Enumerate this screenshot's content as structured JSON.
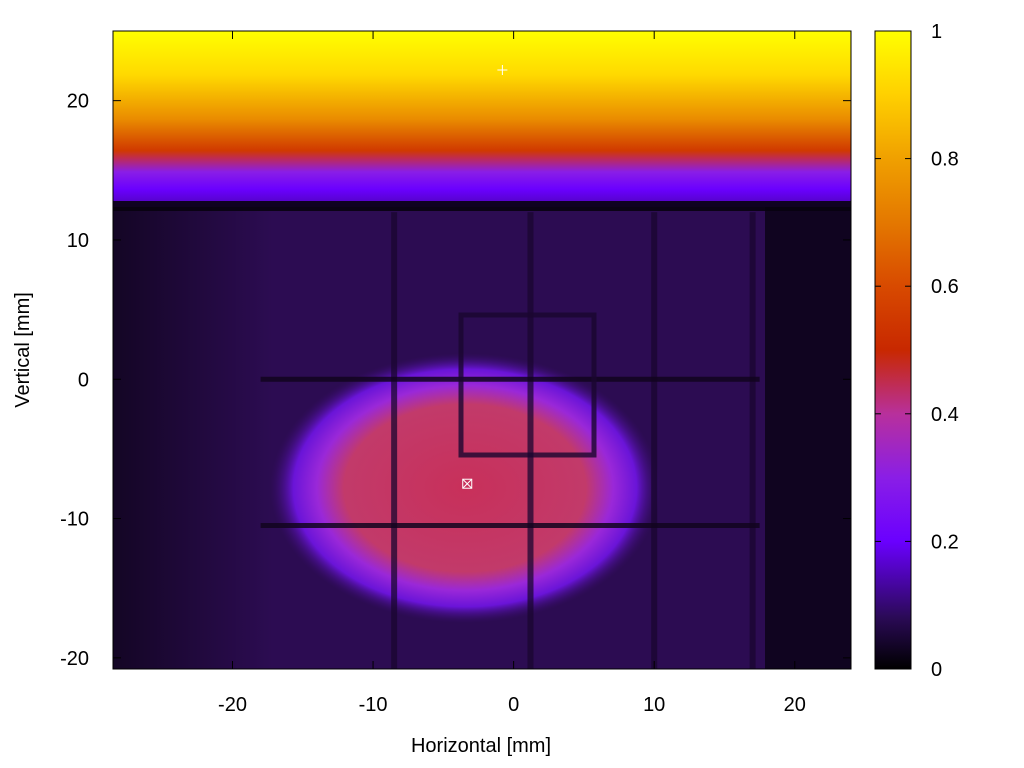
{
  "chart_data": {
    "type": "heatmap",
    "title": "",
    "xlabel": "Horizontal [mm]",
    "ylabel": "Vertical [mm]",
    "xlim": [
      -28.5,
      24
    ],
    "ylim": [
      -20.8,
      25
    ],
    "x_ticks": [
      -20,
      -10,
      0,
      10,
      20
    ],
    "y_ticks": [
      -20,
      -10,
      0,
      10,
      20
    ],
    "colorbar": {
      "range": [
        0,
        1
      ],
      "ticks": [
        0,
        0.2,
        0.4,
        0.6,
        0.8,
        1
      ],
      "tick_labels": [
        "0",
        "0.2",
        "0.4",
        "0.6",
        "0.8",
        "1"
      ],
      "palette": [
        {
          "v": 0.0,
          "color": "#000000"
        },
        {
          "v": 0.08,
          "color": "#2a0a55"
        },
        {
          "v": 0.2,
          "color": "#6a00ff"
        },
        {
          "v": 0.3,
          "color": "#8a1ee6"
        },
        {
          "v": 0.4,
          "color": "#b8309c"
        },
        {
          "v": 0.5,
          "color": "#c82800"
        },
        {
          "v": 0.6,
          "color": "#d84a00"
        },
        {
          "v": 0.7,
          "color": "#e47800"
        },
        {
          "v": 0.8,
          "color": "#f0a000"
        },
        {
          "v": 0.9,
          "color": "#ffd000"
        },
        {
          "v": 1.0,
          "color": "#ffff00"
        }
      ]
    },
    "regions": [
      {
        "name": "upper bright band",
        "y_range": [
          12.5,
          25
        ],
        "value_range": [
          0.15,
          1.0
        ]
      },
      {
        "name": "background field",
        "value": 0.12
      },
      {
        "name": "central blob",
        "center": [
          -3.5,
          -7
        ],
        "radius_x": 12,
        "radius_y": 8,
        "peak_value": 0.42
      }
    ],
    "grid_lines_mm": {
      "vertical": [
        -8.5,
        1.2,
        10,
        17
      ],
      "horizontal": [
        0,
        -10.5
      ]
    },
    "inner_square_mm": {
      "x": [
        -4,
        5.5
      ],
      "y": [
        -5.5,
        4.5
      ]
    },
    "markers": [
      {
        "symbol": "plus",
        "x": -0.8,
        "y": 22.2,
        "color": "#ffffff"
      },
      {
        "symbol": "boxed-x",
        "x": -3.3,
        "y": -7.5,
        "color": "#ffffff"
      }
    ]
  }
}
